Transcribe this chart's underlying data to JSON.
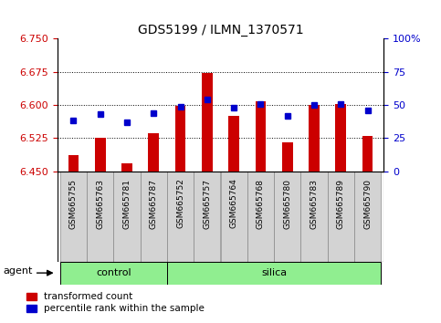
{
  "title": "GDS5199 / ILMN_1370571",
  "samples": [
    "GSM665755",
    "GSM665763",
    "GSM665781",
    "GSM665787",
    "GSM665752",
    "GSM665757",
    "GSM665764",
    "GSM665768",
    "GSM665780",
    "GSM665783",
    "GSM665789",
    "GSM665790"
  ],
  "n_control": 4,
  "n_silica": 8,
  "transformed_count": [
    6.487,
    6.525,
    6.468,
    6.535,
    6.598,
    6.672,
    6.575,
    6.608,
    6.516,
    6.6,
    6.603,
    6.53
  ],
  "percentile_rank": [
    38,
    43,
    37,
    44,
    49,
    54,
    48,
    51,
    42,
    50,
    51,
    46
  ],
  "bar_color": "#cc0000",
  "marker_color": "#0000cc",
  "baseline": 6.45,
  "ylim_left": [
    6.45,
    6.75
  ],
  "ylim_right": [
    0,
    100
  ],
  "yticks_left": [
    6.45,
    6.525,
    6.6,
    6.675,
    6.75
  ],
  "yticks_right": [
    0,
    25,
    50,
    75,
    100
  ],
  "grid_values": [
    6.525,
    6.6,
    6.675
  ],
  "group_color": "#90ee90",
  "tick_bg_color": "#d3d3d3",
  "agent_label": "agent",
  "control_label": "control",
  "silica_label": "silica",
  "legend_transformed": "transformed count",
  "legend_percentile": "percentile rank within the sample"
}
